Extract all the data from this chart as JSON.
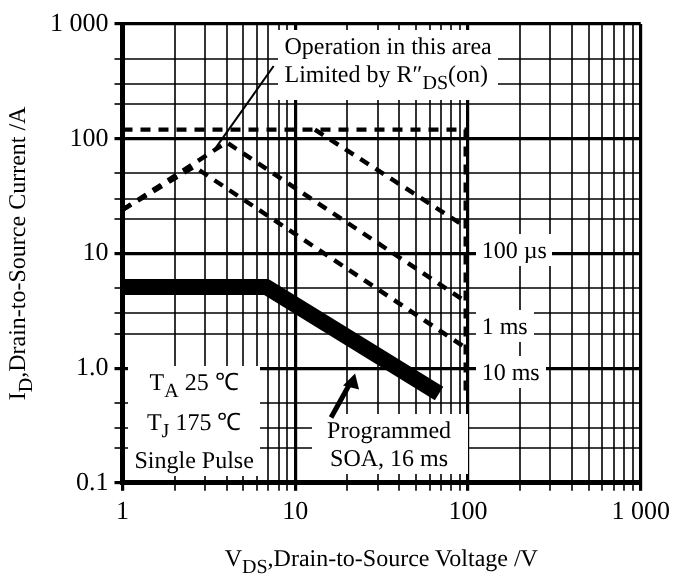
{
  "chart_data": {
    "type": "line",
    "log": "xy",
    "grid": true,
    "xlabel": "V$_{DS}$,Drain-to-Source Voltage /V",
    "ylabel": "I$_{D}$,Drain-to-Source Current /A",
    "xlim": [
      1,
      1000
    ],
    "ylim": [
      0.1,
      1000
    ],
    "xticks": [
      1,
      {
        "value": 2,
        "label": null
      },
      {
        "value": 3,
        "label": null
      },
      {
        "value": 4,
        "label": null
      },
      {
        "value": 5,
        "label": null
      },
      {
        "value": 6,
        "label": null
      },
      {
        "value": 7,
        "label": null
      },
      {
        "value": 8,
        "label": null
      },
      {
        "value": 9,
        "label": null
      },
      10,
      {
        "value": 20,
        "label": null
      },
      {
        "value": 30,
        "label": null
      },
      {
        "value": 40,
        "label": null
      },
      {
        "value": 50,
        "label": null
      },
      {
        "value": 60,
        "label": null
      },
      {
        "value": 70,
        "label": null
      },
      {
        "value": 80,
        "label": null
      },
      {
        "value": 90,
        "label": null
      },
      100,
      {
        "value": 200,
        "label": null
      },
      {
        "value": 300,
        "label": null
      },
      {
        "value": 400,
        "label": null
      },
      {
        "value": 500,
        "label": null
      },
      {
        "value": 600,
        "label": null
      },
      {
        "value": 700,
        "label": null
      },
      {
        "value": 800,
        "label": null
      },
      {
        "value": 900,
        "label": null
      },
      {
        "value": 1000,
        "label": "1 000"
      }
    ],
    "yticks": [
      0.1,
      {
        "value": 0.2,
        "label": null
      },
      {
        "value": 0.3,
        "label": null
      },
      {
        "value": 0.5,
        "label": null
      },
      {
        "value": 1,
        "label": "1.0"
      },
      {
        "value": 2,
        "label": null
      },
      {
        "value": 3,
        "label": null
      },
      {
        "value": 5,
        "label": null
      },
      10,
      {
        "value": 20,
        "label": null
      },
      {
        "value": 30,
        "label": null
      },
      {
        "value": 50,
        "label": null
      },
      100,
      {
        "value": 200,
        "label": null
      },
      {
        "value": 300,
        "label": null
      },
      {
        "value": 500,
        "label": null
      },
      {
        "value": 1000,
        "label": "1 000"
      }
    ],
    "series": [
      {
        "color": "#000000",
        "line_style": "dashed",
        "x": [
          1,
          97,
          97
        ],
        "values": [
          120,
          120,
          0.6
        ]
      },
      {
        "name": "100 µs",
        "color": "#000000",
        "line_style": "dashed",
        "x": [
          13,
          97
        ],
        "values": [
          120,
          17
        ]
      },
      {
        "name": "1 ms",
        "color": "#000000",
        "line_style": "dashed",
        "x": [
          1,
          4,
          97
        ],
        "values": [
          24,
          93,
          3.8
        ]
      },
      {
        "name": "10 ms",
        "color": "#000000",
        "line_style": "dashed",
        "x": [
          1,
          2.6,
          97
        ],
        "values": [
          24,
          57,
          1.5
        ]
      },
      {
        "name": "Programmed SOA, 16 ms",
        "color": "#000000",
        "line_style": "solid",
        "x": [
          1,
          6.8,
          68
        ],
        "values": [
          5.1,
          5.1,
          0.6
        ]
      }
    ],
    "annotations": [
      {
        "text": "Operation in this area\nLimited by R″$_{DS}$(on)",
        "x": 3.4,
        "y": 80
      },
      "T$_{A}$ 25 ℃\nT$_{J}$ 175 ℃\nSingle Pulse"
    ]
  }
}
